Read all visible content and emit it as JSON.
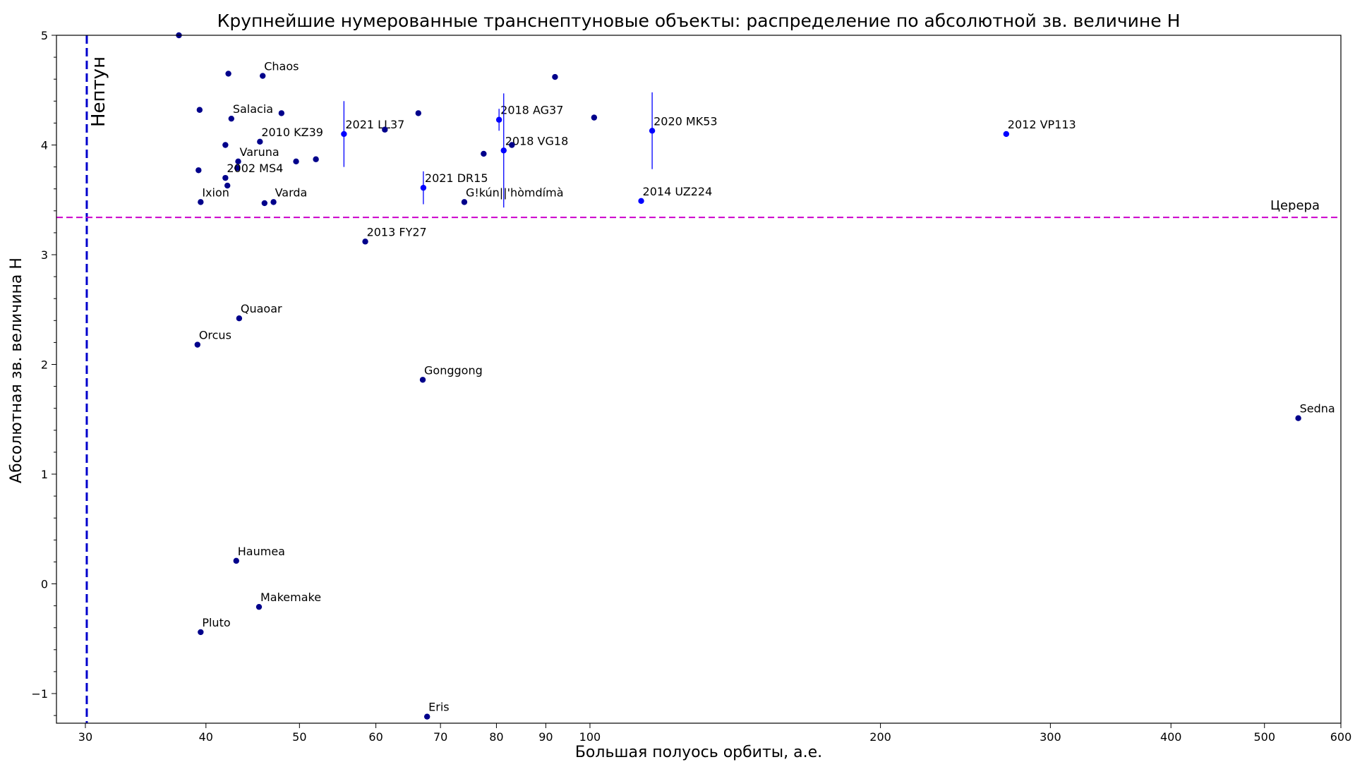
{
  "chart_data": {
    "type": "scatter",
    "title": "Крупнейшие нумерованные транснептуновые объекты: распределение по абсолютной зв. величине H",
    "xlabel": "Большая полуось орбиты, а.е.",
    "ylabel": "Абсолютная зв. величина H",
    "x_scale": "log",
    "xlim": [
      28,
      600
    ],
    "ylim": [
      -1.27,
      5
    ],
    "x_ticks": [
      30,
      40,
      50,
      60,
      70,
      80,
      90,
      100,
      200,
      300,
      400,
      500,
      600
    ],
    "y_ticks": [
      -1,
      0,
      1,
      2,
      3,
      4,
      5
    ],
    "grid": false,
    "reference_lines": [
      {
        "orientation": "vertical",
        "value": 30.1,
        "label": "Нептун",
        "color": "#0000cc"
      },
      {
        "orientation": "horizontal",
        "value": 3.34,
        "label": "Церера",
        "color": "#cc00cc"
      }
    ],
    "colors": {
      "numbered": "#00008b",
      "uncertain": "#0000ff"
    },
    "points": [
      {
        "x": 37.5,
        "y": 5.0
      },
      {
        "x": 42.2,
        "y": 4.65
      },
      {
        "x": 45.8,
        "y": 4.63,
        "label": "Chaos"
      },
      {
        "x": 39.4,
        "y": 4.32
      },
      {
        "x": 42.5,
        "y": 4.24,
        "label": "Salacia"
      },
      {
        "x": 47.9,
        "y": 4.29
      },
      {
        "x": 45.5,
        "y": 4.03,
        "label": "2010 KZ39"
      },
      {
        "x": 41.9,
        "y": 4.0
      },
      {
        "x": 43.2,
        "y": 3.85,
        "label": "Varuna"
      },
      {
        "x": 43.1,
        "y": 3.79
      },
      {
        "x": 39.3,
        "y": 3.77
      },
      {
        "x": 49.6,
        "y": 3.85
      },
      {
        "x": 52.0,
        "y": 3.87
      },
      {
        "x": 41.9,
        "y": 3.7,
        "label": "2002 MS4"
      },
      {
        "x": 42.1,
        "y": 3.63
      },
      {
        "x": 39.5,
        "y": 3.48,
        "label": "Ixion"
      },
      {
        "x": 46.0,
        "y": 3.47
      },
      {
        "x": 47.0,
        "y": 3.48,
        "label": "Varda"
      },
      {
        "x": 66.4,
        "y": 4.29
      },
      {
        "x": 77.6,
        "y": 3.92
      },
      {
        "x": 74.1,
        "y": 3.48,
        "label": "G!kún||'hòmdímà"
      },
      {
        "x": 83.0,
        "y": 4.0
      },
      {
        "x": 92.0,
        "y": 4.62
      },
      {
        "x": 101.0,
        "y": 4.25
      },
      {
        "x": 61.3,
        "y": 4.14
      },
      {
        "x": 58.5,
        "y": 3.12,
        "label": "2013 FY27"
      },
      {
        "x": 43.3,
        "y": 2.42,
        "label": "Quaoar"
      },
      {
        "x": 39.2,
        "y": 2.18,
        "label": "Orcus"
      },
      {
        "x": 67.1,
        "y": 1.86,
        "label": "Gonggong"
      },
      {
        "x": 542.0,
        "y": 1.51,
        "label": "Sedna"
      },
      {
        "x": 43.0,
        "y": 0.21,
        "label": "Haumea"
      },
      {
        "x": 45.4,
        "y": -0.21,
        "label": "Makemake"
      },
      {
        "x": 39.5,
        "y": -0.44,
        "label": "Pluto"
      },
      {
        "x": 67.8,
        "y": -1.21,
        "label": "Eris"
      }
    ],
    "uncertain_points": [
      {
        "x": 55.6,
        "y": 4.1,
        "y_err": 0.3,
        "label": "2021 LL37"
      },
      {
        "x": 67.2,
        "y": 3.61,
        "y_err": 0.15,
        "label": "2021 DR15"
      },
      {
        "x": 80.5,
        "y": 4.23,
        "y_err": 0.1,
        "label": "2018 AG37"
      },
      {
        "x": 81.4,
        "y": 3.95,
        "y_err": 0.52,
        "label": "2018 VG18"
      },
      {
        "x": 113.0,
        "y": 3.49,
        "label": "2014 UZ224"
      },
      {
        "x": 116.0,
        "y": 4.13,
        "y_err": 0.35,
        "label": "2020 MK53"
      },
      {
        "x": 270.0,
        "y": 4.1,
        "label": "2012 VP113"
      }
    ]
  }
}
